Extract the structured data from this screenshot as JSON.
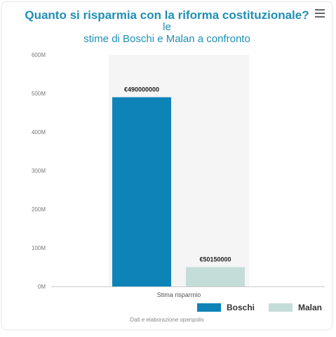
{
  "title": {
    "line1": "Quanto si risparmia con la riforma costituzionale?",
    "line2": "le",
    "line3": "stime di Boschi e Malan a confronto"
  },
  "icons": {
    "menu": "hamburger-menu-icon"
  },
  "colors": {
    "title": "#1f8fb4",
    "boschi": "#0e83b8",
    "malan": "#c5ddd9",
    "plot_band": "#f5f5f5"
  },
  "chart_data": {
    "type": "bar",
    "categories": [
      "Stima risparmio"
    ],
    "series": [
      {
        "name": "Boschi",
        "values": [
          490000000
        ],
        "data_labels": [
          "€490000000"
        ]
      },
      {
        "name": "Malan",
        "values": [
          50150000
        ],
        "data_labels": [
          "€50150000"
        ]
      }
    ],
    "ylim": [
      0,
      600000000
    ],
    "yticks": [
      {
        "value": 0,
        "label": "0M"
      },
      {
        "value": 100000000,
        "label": "100M"
      },
      {
        "value": 200000000,
        "label": "200M"
      },
      {
        "value": 300000000,
        "label": "300M"
      },
      {
        "value": 400000000,
        "label": "400M"
      },
      {
        "value": 500000000,
        "label": "500M"
      },
      {
        "value": 600000000,
        "label": "600M"
      }
    ],
    "grid": false,
    "legend_position": "bottom-right"
  },
  "source": "Dati e elaborazione openpolis"
}
